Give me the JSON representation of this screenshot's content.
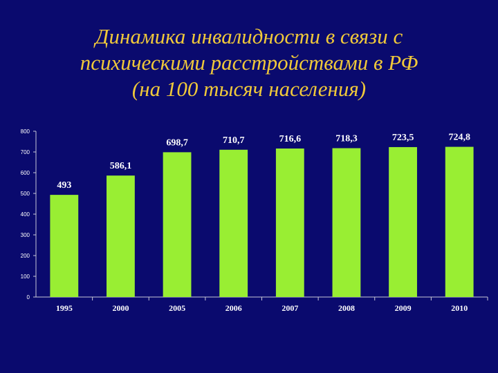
{
  "title_lines": [
    "Динамика инвалидности в связи с",
    "психическими расстройствами в РФ",
    "(на 100 тысяч населения)"
  ],
  "colors": {
    "background": "#0a0a6e",
    "title": "#f0c93a",
    "bar": "#99ee33",
    "text": "#ffffff"
  },
  "chart_data": {
    "type": "bar",
    "title": "Динамика инвалидности в связи с психическими расстройствами в РФ (на 100 тысяч населения)",
    "categories": [
      "1995",
      "2000",
      "2005",
      "2006",
      "2007",
      "2008",
      "2009",
      "2010"
    ],
    "values": [
      493,
      586.1,
      698.7,
      710.7,
      716.6,
      718.3,
      723.5,
      724.8
    ],
    "value_labels": [
      "493",
      "586,1",
      "698,7",
      "710,7",
      "716,6",
      "718,3",
      "723,5",
      "724,8"
    ],
    "y_ticks": [
      "0",
      "100",
      "200",
      "300",
      "400",
      "500",
      "600",
      "700",
      "800"
    ],
    "ylim": [
      0,
      800
    ],
    "grid": false,
    "legend": "none"
  }
}
